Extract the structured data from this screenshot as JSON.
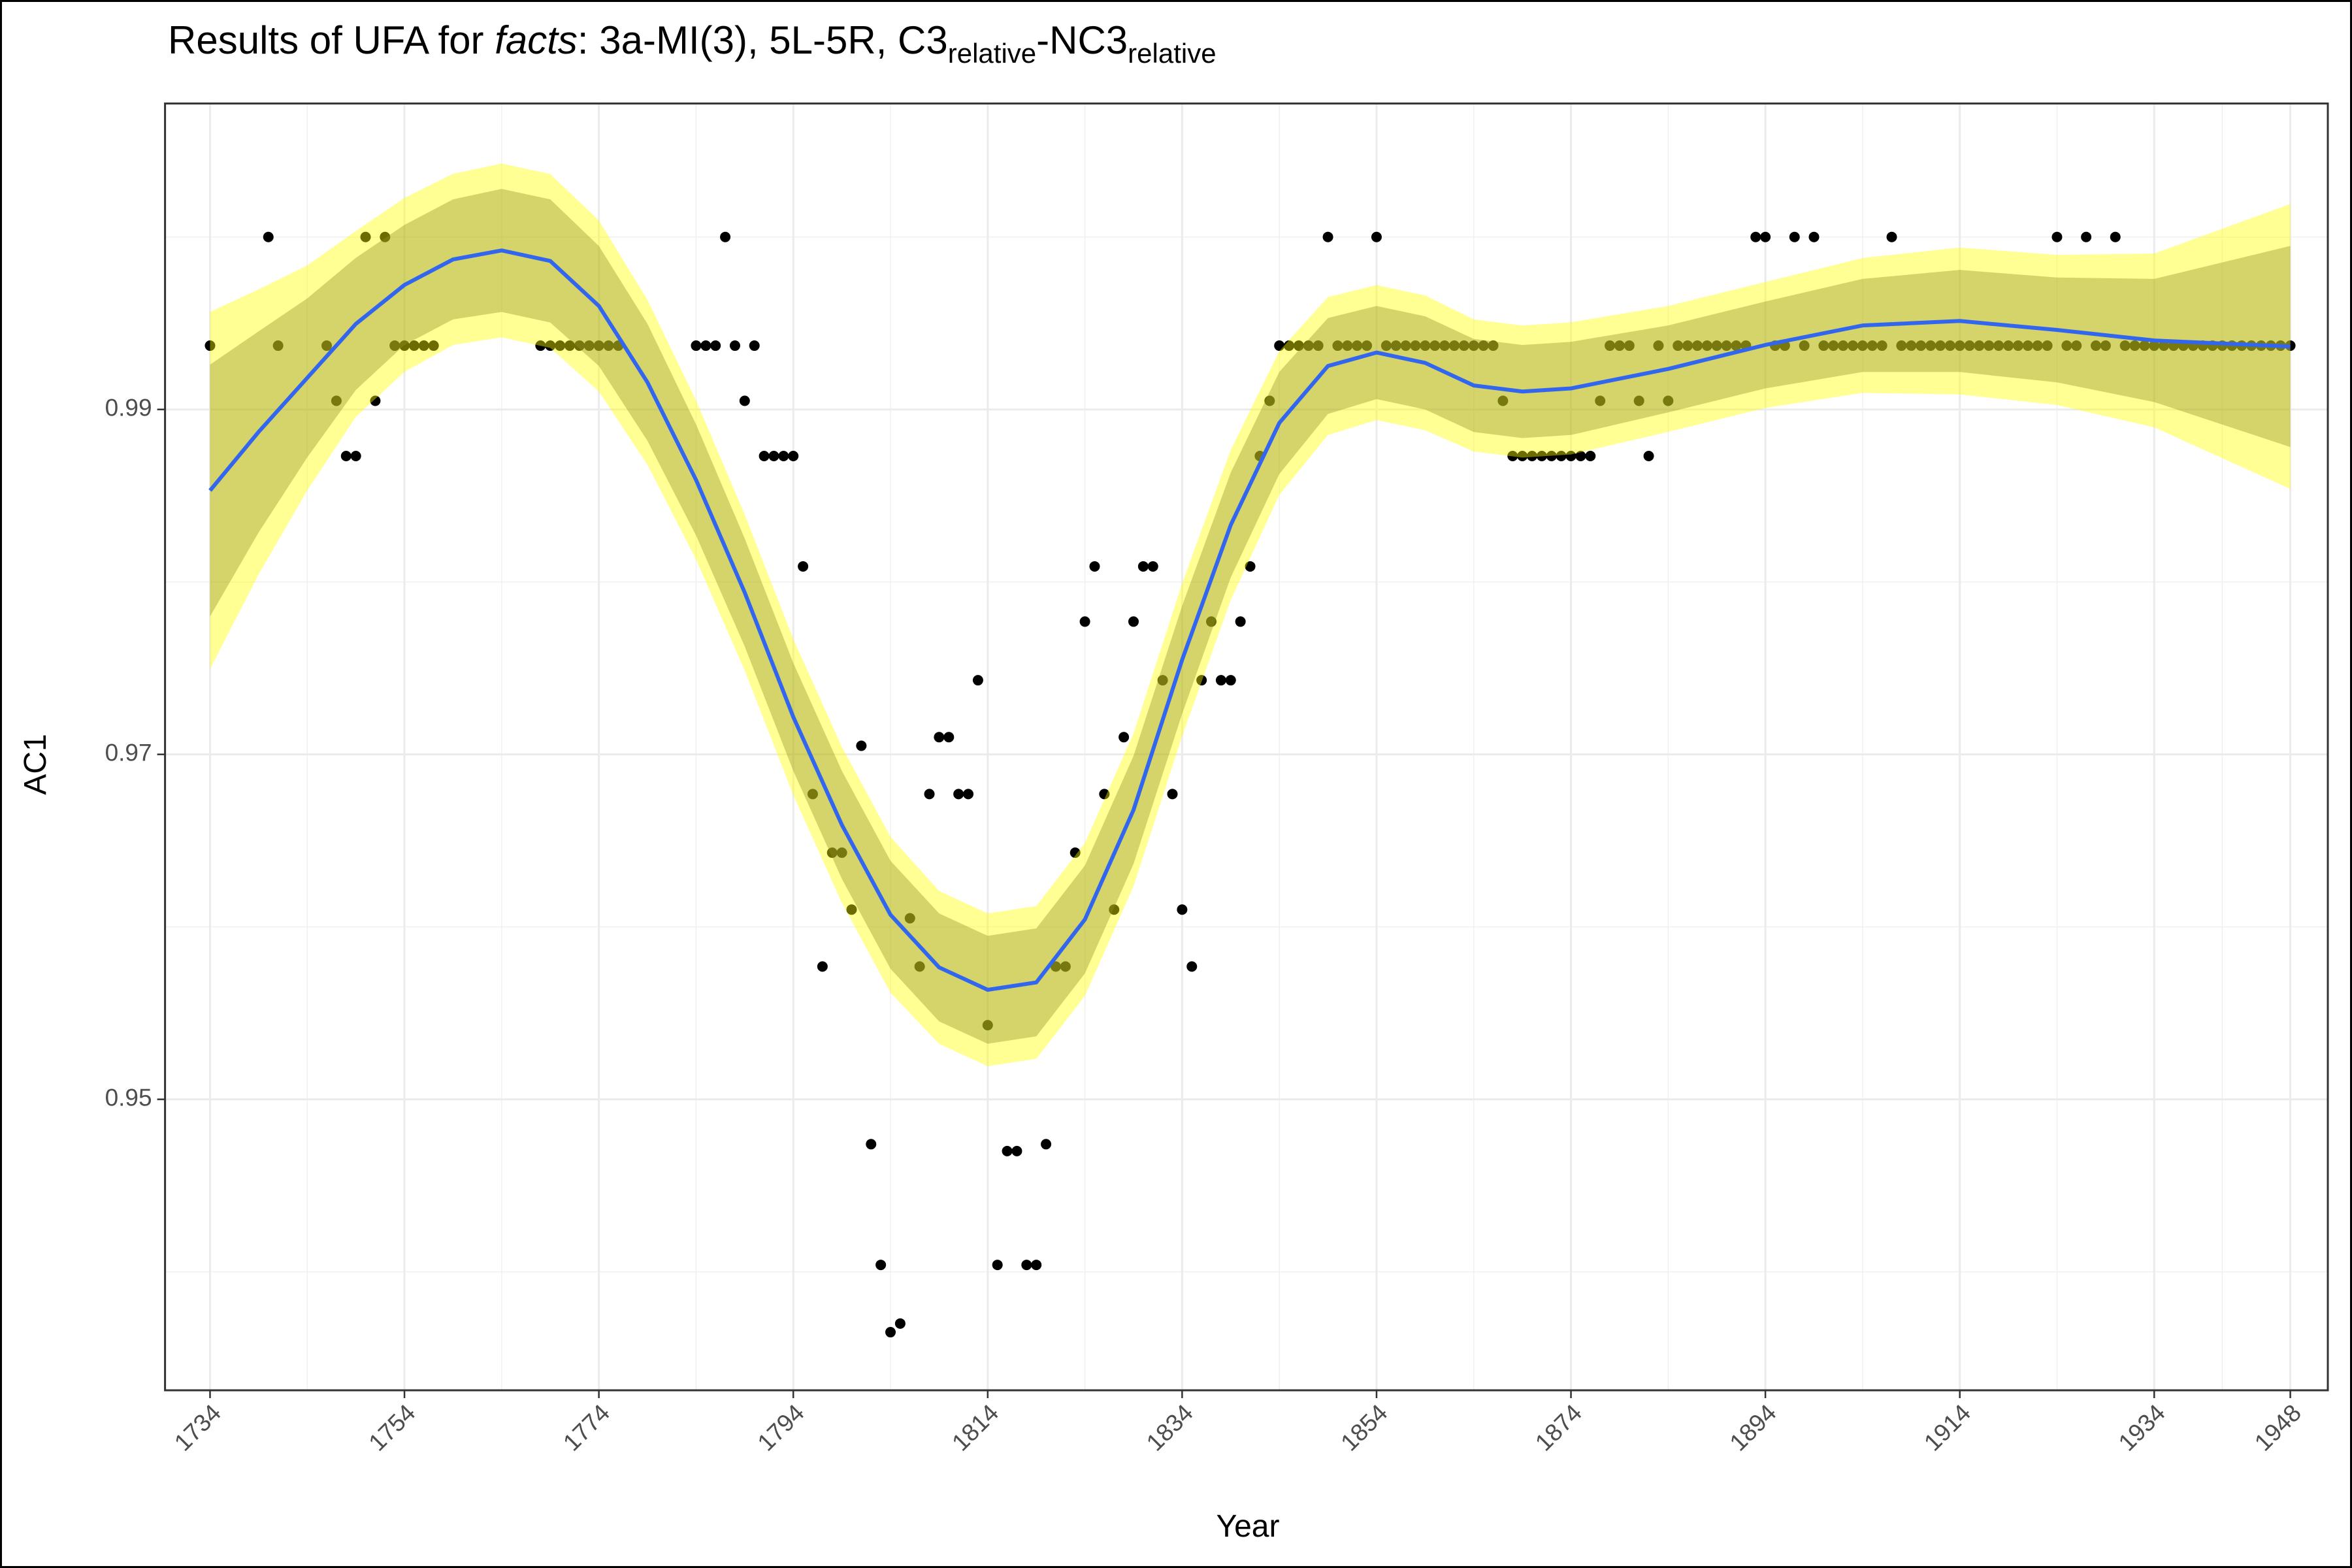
{
  "chart_data": {
    "type": "scatter",
    "title_parts": [
      "Results of UFA for ",
      "facts",
      ": 3a-MI(3), 5L-5R, C3",
      "relative",
      "-NC3",
      "relative"
    ],
    "x_label": "Year",
    "y_label": "AC1",
    "xlim": [
      1729.37,
      1951.86
    ],
    "ylim": [
      0.93313,
      1.00774
    ],
    "xticks": [
      1734,
      1754,
      1774,
      1794,
      1814,
      1834,
      1854,
      1874,
      1894,
      1914,
      1934,
      1948
    ],
    "yticks": [
      0.95,
      0.97,
      0.99
    ],
    "xminor": [
      1744,
      1764,
      1784,
      1804,
      1824,
      1844,
      1864,
      1884,
      1904,
      1924,
      1941
    ],
    "yminor": [
      0.94,
      0.96,
      0.98,
      1.0
    ],
    "grid": true,
    "points": {
      "color": "#000000",
      "x": [
        1734,
        1740,
        1741,
        1746,
        1747,
        1748,
        1749,
        1750,
        1751,
        1752,
        1753,
        1754,
        1755,
        1756,
        1757,
        1768,
        1769,
        1770,
        1771,
        1772,
        1773,
        1774,
        1775,
        1776,
        1784,
        1785,
        1786,
        1787,
        1788,
        1789,
        1790,
        1791,
        1792,
        1793,
        1794,
        1795,
        1796,
        1797,
        1798,
        1799,
        1800,
        1801,
        1802,
        1803,
        1804,
        1805,
        1806,
        1807,
        1808,
        1809,
        1810,
        1811,
        1812,
        1813,
        1814,
        1815,
        1816,
        1817,
        1818,
        1819,
        1820,
        1821,
        1822,
        1823,
        1824,
        1825,
        1826,
        1827,
        1828,
        1829,
        1830,
        1831,
        1832,
        1833,
        1834,
        1835,
        1836,
        1837,
        1838,
        1839,
        1840,
        1841,
        1842,
        1843,
        1844,
        1845,
        1846,
        1847,
        1848,
        1849,
        1850,
        1851,
        1852,
        1853,
        1854,
        1855,
        1856,
        1857,
        1858,
        1859,
        1860,
        1861,
        1862,
        1863,
        1864,
        1865,
        1866,
        1867,
        1868,
        1869,
        1870,
        1871,
        1872,
        1873,
        1874,
        1875,
        1876,
        1877,
        1878,
        1879,
        1880,
        1881,
        1882,
        1883,
        1884,
        1885,
        1886,
        1887,
        1888,
        1889,
        1890,
        1891,
        1892,
        1893,
        1894,
        1895,
        1896,
        1897,
        1898,
        1899,
        1900,
        1901,
        1902,
        1903,
        1904,
        1905,
        1906,
        1907,
        1908,
        1909,
        1910,
        1911,
        1912,
        1913,
        1914,
        1915,
        1916,
        1917,
        1918,
        1919,
        1920,
        1921,
        1922,
        1923,
        1924,
        1925,
        1926,
        1927,
        1928,
        1929,
        1930,
        1931,
        1932,
        1933,
        1934,
        1935,
        1936,
        1937,
        1938,
        1939,
        1940,
        1941,
        1942,
        1943,
        1944,
        1945,
        1946,
        1947,
        1948
      ],
      "values": [
        0.9937,
        1.0,
        0.9937,
        0.9937,
        0.9905,
        0.9873,
        0.9873,
        1.0,
        0.9905,
        1.0,
        0.9937,
        0.9937,
        0.9937,
        0.9937,
        0.9937,
        0.9937,
        0.9937,
        0.9937,
        0.9937,
        0.9937,
        0.9937,
        0.9937,
        0.9937,
        0.9937,
        0.9937,
        0.9937,
        0.9937,
        1.0,
        0.9937,
        0.9905,
        0.9937,
        0.9873,
        0.9873,
        0.9873,
        0.9873,
        0.9809,
        0.9677,
        0.9577,
        0.9643,
        0.9643,
        0.961,
        0.9705,
        0.9474,
        0.9404,
        0.9365,
        0.937,
        0.9605,
        0.9577,
        0.9677,
        0.971,
        0.971,
        0.9677,
        0.9677,
        0.9743,
        0.9543,
        0.9404,
        0.947,
        0.947,
        0.9404,
        0.9404,
        0.9474,
        0.9577,
        0.9577,
        0.9643,
        0.9777,
        0.9809,
        0.9677,
        0.961,
        0.971,
        0.9777,
        0.9809,
        0.9809,
        0.9743,
        0.9677,
        0.961,
        0.9577,
        0.9743,
        0.9777,
        0.9743,
        0.9743,
        0.9777,
        0.9809,
        0.9873,
        0.9905,
        0.9937,
        0.9937,
        0.9937,
        0.9937,
        0.9937,
        1.0,
        0.9937,
        0.9937,
        0.9937,
        0.9937,
        1.0,
        0.9937,
        0.9937,
        0.9937,
        0.9937,
        0.9937,
        0.9937,
        0.9937,
        0.9937,
        0.9937,
        0.9937,
        0.9937,
        0.9937,
        0.9905,
        0.9873,
        0.9873,
        0.9873,
        0.9873,
        0.9873,
        0.9873,
        0.9873,
        0.9873,
        0.9873,
        0.9905,
        0.9937,
        0.9937,
        0.9937,
        0.9905,
        0.9873,
        0.9937,
        0.9905,
        0.9937,
        0.9937,
        0.9937,
        0.9937,
        0.9937,
        0.9937,
        0.9937,
        0.9937,
        1.0,
        1.0,
        0.9937,
        0.9937,
        1.0,
        0.9937,
        1.0,
        0.9937,
        0.9937,
        0.9937,
        0.9937,
        0.9937,
        0.9937,
        0.9937,
        1.0,
        0.9937,
        0.9937,
        0.9937,
        0.9937,
        0.9937,
        0.9937,
        0.9937,
        0.9937,
        0.9937,
        0.9937,
        0.9937,
        0.9937,
        0.9937,
        0.9937,
        0.9937,
        0.9937,
        1.0,
        0.9937,
        0.9937,
        1.0,
        0.9937,
        0.9937,
        1.0,
        0.9937,
        0.9937,
        0.9937,
        0.9937,
        0.9937,
        0.9937,
        0.9937,
        0.9937,
        0.9937,
        0.9937,
        0.9937,
        0.9937,
        0.9937,
        0.9937,
        0.9937,
        0.9937,
        0.9937,
        0.9937
      ]
    },
    "bands": [
      {
        "color": "#ffff00",
        "opacity": 0.42,
        "x": [
          1734,
          1739,
          1744,
          1749,
          1754,
          1759,
          1764,
          1769,
          1774,
          1779,
          1784,
          1789,
          1794,
          1799,
          1804,
          1809,
          1814,
          1819,
          1824,
          1829,
          1834,
          1839,
          1844,
          1849,
          1854,
          1859,
          1864,
          1869,
          1874,
          1884,
          1894,
          1904,
          1914,
          1924,
          1934,
          1948
        ],
        "lower": [
          0.97495,
          0.98044,
          0.98531,
          0.98957,
          0.99218,
          0.99374,
          0.99418,
          0.99357,
          0.99104,
          0.98679,
          0.9813,
          0.97487,
          0.96765,
          0.96139,
          0.95618,
          0.95322,
          0.95192,
          0.95235,
          0.956,
          0.96235,
          0.97105,
          0.97895,
          0.98505,
          0.98852,
          0.98939,
          0.98879,
          0.98756,
          0.98721,
          0.98739,
          0.9887,
          0.99009,
          0.99096,
          0.99087,
          0.99026,
          0.98896,
          0.98539
        ],
        "upper": [
          0.99565,
          0.99696,
          0.99835,
          1.00035,
          1.00226,
          1.00366,
          1.00426,
          1.00365,
          1.00096,
          0.99635,
          0.99052,
          0.98391,
          0.97669,
          0.97043,
          0.96522,
          0.96208,
          0.96078,
          0.96121,
          0.96486,
          0.97121,
          0.97991,
          0.98765,
          0.99339,
          0.99652,
          0.99721,
          0.99661,
          0.99522,
          0.99487,
          0.99505,
          0.996,
          0.99739,
          0.99878,
          0.99939,
          0.99896,
          0.99904,
          1.00191
        ]
      },
      {
        "color": "#8f8f2a",
        "opacity": 0.38,
        "x": [
          1734,
          1739,
          1744,
          1749,
          1754,
          1759,
          1764,
          1769,
          1774,
          1779,
          1784,
          1789,
          1794,
          1799,
          1804,
          1809,
          1814,
          1819,
          1824,
          1829,
          1834,
          1839,
          1844,
          1849,
          1854,
          1859,
          1864,
          1869,
          1874,
          1884,
          1894,
          1904,
          1914,
          1924,
          1934,
          1948
        ],
        "lower": [
          0.978,
          0.98287,
          0.98722,
          0.99113,
          0.99374,
          0.99522,
          0.99565,
          0.99504,
          0.99252,
          0.98818,
          0.98269,
          0.97626,
          0.96904,
          0.96278,
          0.95757,
          0.95452,
          0.95322,
          0.95365,
          0.9573,
          0.96365,
          0.97235,
          0.98026,
          0.98626,
          0.98974,
          0.9906,
          0.99,
          0.98869,
          0.98834,
          0.98852,
          0.98983,
          0.99122,
          0.99217,
          0.99217,
          0.99157,
          0.99043,
          0.98782
        ],
        "upper": [
          0.9926,
          0.99453,
          0.99644,
          0.99879,
          1.0007,
          1.00218,
          1.00279,
          1.00218,
          0.99948,
          0.99496,
          0.98913,
          0.98252,
          0.9753,
          0.96904,
          0.96383,
          0.96078,
          0.95948,
          0.95991,
          0.96356,
          0.96991,
          0.97861,
          0.98634,
          0.99218,
          0.9953,
          0.996,
          0.9954,
          0.99409,
          0.99374,
          0.99392,
          0.99487,
          0.99626,
          0.99757,
          0.99809,
          0.99765,
          0.99757,
          0.99948
        ]
      }
    ],
    "smooth": {
      "color": "#3366ee",
      "x": [
        1734,
        1739,
        1744,
        1749,
        1754,
        1759,
        1764,
        1769,
        1774,
        1779,
        1784,
        1789,
        1794,
        1799,
        1804,
        1809,
        1814,
        1819,
        1824,
        1829,
        1834,
        1839,
        1844,
        1849,
        1854,
        1859,
        1864,
        1869,
        1874,
        1884,
        1894,
        1904,
        1914,
        1924,
        1934,
        1948
      ],
      "values": [
        0.9853,
        0.9887,
        0.99183,
        0.99496,
        0.99722,
        0.9987,
        0.99922,
        0.99861,
        0.996,
        0.99157,
        0.98591,
        0.97939,
        0.97217,
        0.96591,
        0.9607,
        0.95765,
        0.95635,
        0.95678,
        0.96043,
        0.96678,
        0.97548,
        0.9833,
        0.98922,
        0.99252,
        0.9933,
        0.9927,
        0.99139,
        0.99104,
        0.99122,
        0.99235,
        0.99374,
        0.99487,
        0.99513,
        0.99461,
        0.994,
        0.99365
      ]
    }
  }
}
